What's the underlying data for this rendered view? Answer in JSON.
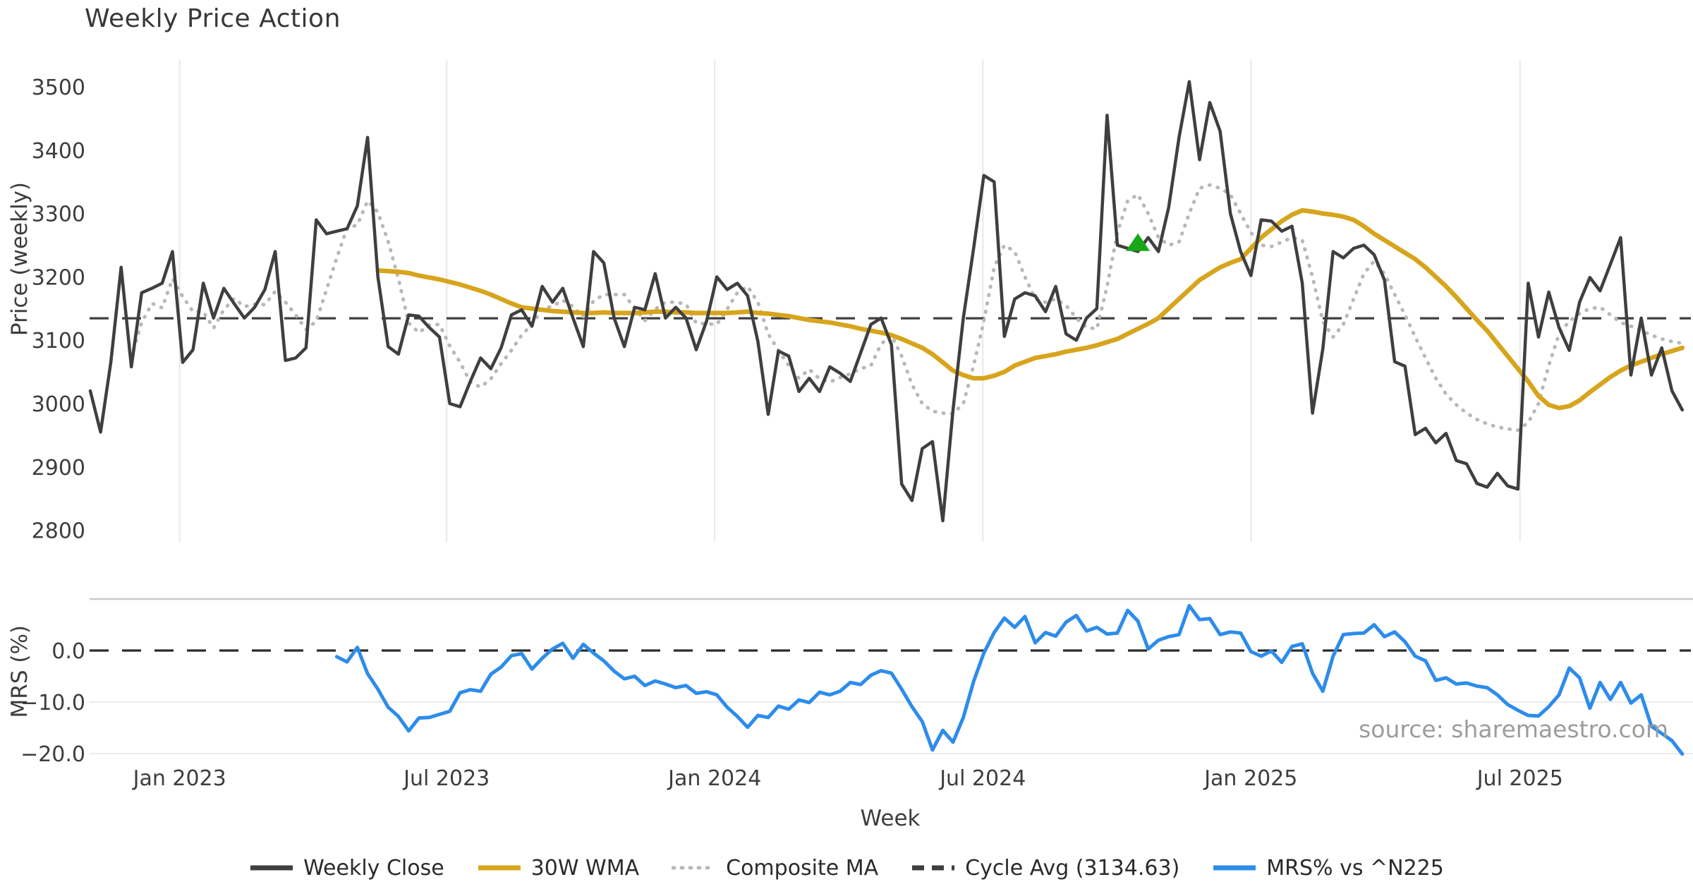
{
  "title": "Weekly Price Action",
  "source_note": "source: sharemaestro.com",
  "axes": {
    "price": {
      "label": "Price (weekly)"
    },
    "mrs": {
      "label": "MRS (%)"
    },
    "x": {
      "label": "Week"
    }
  },
  "legend": [
    {
      "label": "Weekly Close",
      "color": "#3f3f3f",
      "swatch": "solid"
    },
    {
      "label": "30W WMA",
      "color": "#d7a51d",
      "swatch": "solid"
    },
    {
      "label": "Composite MA",
      "color": "#b8b8b8",
      "swatch": "dotted"
    },
    {
      "label": "Cycle Avg (3134.63)",
      "color": "#3f3f3f",
      "swatch": "dashed"
    },
    {
      "label": "MRS% vs ^N225",
      "color": "#2d8ceb",
      "swatch": "solid"
    }
  ],
  "chart_data": [
    {
      "type": "line",
      "title": "Weekly Price Action",
      "xlabel": "Week",
      "ylabel": "Price (weekly)",
      "ylim": [
        2785,
        3542
      ],
      "grid": "vertical-only",
      "x_unit": "week_index",
      "x_ticks": {
        "labels": [
          "Jan 2023",
          "Jul 2023",
          "Jan 2024",
          "Jul 2024",
          "Jan 2025",
          "Jul 2025"
        ],
        "week_positions": [
          8.7,
          34.7,
          60.8,
          86.9,
          113.0,
          139.2
        ]
      },
      "y_ticks": [
        3500,
        3400,
        3300,
        3200,
        3100,
        3000,
        2900,
        2800
      ],
      "cycle_avg": 3134.63,
      "marker": {
        "shape": "triangle-up",
        "color": "#18a718",
        "week": 102,
        "value": 3253
      },
      "series": [
        {
          "name": "Weekly Close",
          "color": "#3f3f3f",
          "style": "solid",
          "start_week": 0,
          "values": [
            3020,
            2955,
            3065,
            3215,
            3058,
            3175,
            3182,
            3190,
            3240,
            3065,
            3085,
            3190,
            3135,
            3182,
            3158,
            3135,
            3152,
            3180,
            3240,
            3068,
            3072,
            3088,
            3290,
            3268,
            3272,
            3276,
            3312,
            3420,
            3200,
            3090,
            3078,
            3140,
            3138,
            3120,
            3105,
            3000,
            2995,
            3035,
            3072,
            3055,
            3088,
            3140,
            3148,
            3122,
            3185,
            3160,
            3182,
            3135,
            3090,
            3240,
            3222,
            3135,
            3090,
            3152,
            3148,
            3205,
            3135,
            3152,
            3135,
            3085,
            3130,
            3200,
            3180,
            3190,
            3170,
            3098,
            2983,
            3083,
            3075,
            3019,
            3040,
            3019,
            3058,
            3048,
            3035,
            3080,
            3125,
            3135,
            3093,
            2873,
            2847,
            2929,
            2940,
            2815,
            2990,
            3135,
            3245,
            3360,
            3350,
            3106,
            3165,
            3175,
            3170,
            3145,
            3185,
            3110,
            3100,
            3135,
            3150,
            3455,
            3250,
            3245,
            3240,
            3262,
            3240,
            3310,
            3420,
            3508,
            3385,
            3475,
            3430,
            3300,
            3240,
            3202,
            3290,
            3288,
            3272,
            3280,
            3190,
            2985,
            3086,
            3240,
            3230,
            3245,
            3250,
            3235,
            3195,
            3066,
            3059,
            2951,
            2961,
            2938,
            2953,
            2910,
            2905,
            2874,
            2868,
            2890,
            2870,
            2865,
            3190,
            3105,
            3176,
            3120,
            3084,
            3160,
            3199,
            3178,
            3220,
            3262,
            3045,
            3135,
            3045,
            3088,
            3020,
            2990
          ]
        },
        {
          "name": "30W WMA",
          "color": "#d7a51d",
          "style": "solid",
          "start_week": 28,
          "values": [
            3210,
            3209,
            3208,
            3206,
            3202,
            3199,
            3196,
            3192,
            3188,
            3183,
            3178,
            3172,
            3165,
            3158,
            3152,
            3150,
            3148,
            3146,
            3145,
            3144,
            3143,
            3143,
            3144,
            3143,
            3143,
            3143,
            3144,
            3145,
            3145,
            3144,
            3144,
            3143,
            3143,
            3143,
            3143,
            3144,
            3145,
            3143,
            3142,
            3140,
            3138,
            3135,
            3132,
            3130,
            3128,
            3125,
            3122,
            3118,
            3115,
            3112,
            3108,
            3102,
            3095,
            3088,
            3078,
            3065,
            3052,
            3045,
            3040,
            3040,
            3044,
            3050,
            3060,
            3066,
            3072,
            3075,
            3078,
            3082,
            3085,
            3088,
            3092,
            3097,
            3102,
            3110,
            3118,
            3126,
            3135,
            3150,
            3165,
            3180,
            3195,
            3205,
            3215,
            3222,
            3228,
            3245,
            3262,
            3275,
            3288,
            3298,
            3305,
            3303,
            3300,
            3298,
            3295,
            3290,
            3280,
            3268,
            3258,
            3248,
            3238,
            3228,
            3215,
            3200,
            3185,
            3168,
            3150,
            3132,
            3115,
            3095,
            3075,
            3055,
            3035,
            3012,
            2998,
            2993,
            2996,
            3005,
            3018,
            3030,
            3042,
            3052,
            3060,
            3066,
            3072,
            3078,
            3083,
            3088
          ]
        },
        {
          "name": "Composite MA",
          "color": "#b8b8b8",
          "style": "dotted",
          "start_week": 4,
          "values": [
            3073,
            3128,
            3158,
            3151,
            3197,
            3169,
            3145,
            3145,
            3119,
            3148,
            3166,
            3153,
            3157,
            3156,
            3177,
            3160,
            3140,
            3117,
            3130,
            3180,
            3230,
            3277,
            3282,
            3320,
            3302,
            3256,
            3197,
            3127,
            3112,
            3124,
            3125,
            3091,
            3065,
            3034,
            3026,
            3039,
            3063,
            3084,
            3108,
            3125,
            3149,
            3154,
            3163,
            3153,
            3137,
            3162,
            3172,
            3172,
            3172,
            3150,
            3131,
            3149,
            3160,
            3160,
            3157,
            3127,
            3126,
            3125,
            3149,
            3175,
            3185,
            3160,
            3110,
            3084,
            3060,
            3040,
            3054,
            3039,
            3034,
            3041,
            3047,
            3055,
            3060,
            3094,
            3108,
            3075,
            3030,
            3000,
            2988,
            2985,
            2984,
            3000,
            3060,
            3130,
            3215,
            3250,
            3240,
            3200,
            3165,
            3160,
            3165,
            3155,
            3135,
            3120,
            3118,
            3185,
            3270,
            3320,
            3330,
            3300,
            3262,
            3250,
            3255,
            3300,
            3340,
            3345,
            3340,
            3330,
            3300,
            3270,
            3250,
            3248,
            3255,
            3262,
            3258,
            3200,
            3130,
            3105,
            3125,
            3165,
            3205,
            3225,
            3205,
            3172,
            3140,
            3105,
            3072,
            3040,
            3015,
            2998,
            2985,
            2975,
            2968,
            2963,
            2960,
            2958,
            2970,
            3000,
            3060,
            3110,
            3130,
            3142,
            3150,
            3152,
            3140,
            3128,
            3122,
            3115,
            3108,
            3102,
            3098,
            3095
          ]
        }
      ]
    },
    {
      "type": "line",
      "ylabel": "MRS (%)",
      "ylim": [
        -21.6,
        10.0
      ],
      "y_tick_labels": [
        "0.0",
        "−10.0",
        "−20.0"
      ],
      "y_tick_values": [
        0,
        -10,
        -20
      ],
      "zero_line": 0,
      "series": [
        {
          "name": "MRS% vs ^N225",
          "color": "#2d8ceb",
          "style": "solid",
          "start_week": 24,
          "values": [
            -1.2,
            -2.2,
            0.6,
            -4.5,
            -7.5,
            -11.0,
            -12.8,
            -15.6,
            -13.1,
            -13.0,
            -12.4,
            -11.8,
            -8.2,
            -7.6,
            -7.9,
            -4.6,
            -3.2,
            -1.0,
            -0.6,
            -3.6,
            -1.5,
            0.3,
            1.4,
            -1.5,
            1.2,
            -0.5,
            -2.0,
            -4.0,
            -5.5,
            -5.0,
            -6.8,
            -5.9,
            -6.5,
            -7.2,
            -6.8,
            -8.3,
            -8.0,
            -8.6,
            -11.0,
            -12.8,
            -14.9,
            -12.6,
            -13.0,
            -10.8,
            -11.4,
            -9.6,
            -10.1,
            -8.1,
            -8.6,
            -7.9,
            -6.2,
            -6.6,
            -4.8,
            -3.9,
            -4.4,
            -7.5,
            -10.9,
            -13.8,
            -19.3,
            -15.5,
            -17.8,
            -13.0,
            -6.0,
            -0.5,
            3.5,
            6.3,
            4.5,
            6.6,
            1.5,
            3.5,
            2.8,
            5.5,
            6.8,
            3.8,
            4.5,
            3.2,
            3.4,
            7.8,
            5.7,
            0.3,
            2.0,
            2.7,
            3.1,
            8.7,
            6.0,
            6.2,
            3.1,
            3.6,
            3.4,
            -0.2,
            -1.1,
            -0.1,
            -2.3,
            0.8,
            1.3,
            -4.4,
            -7.9,
            -1.1,
            3.1,
            3.3,
            3.4,
            5.0,
            2.7,
            3.6,
            1.7,
            -1.1,
            -2.0,
            -5.8,
            -5.3,
            -6.5,
            -6.3,
            -6.9,
            -7.2,
            -8.6,
            -10.5,
            -11.6,
            -12.6,
            -12.7,
            -10.9,
            -8.6,
            -3.4,
            -5.3,
            -11.2,
            -6.2,
            -9.5,
            -6.2,
            -10.2,
            -8.6,
            -14.7,
            -16.1,
            -17.5,
            -20.1
          ]
        }
      ]
    }
  ]
}
